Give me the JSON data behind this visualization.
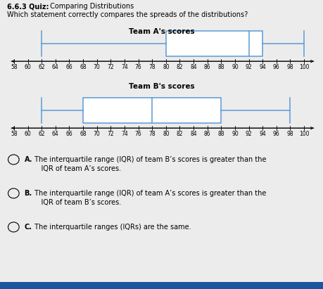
{
  "title_bold": "6.6.3 Quiz:",
  "title_normal": " Comparing Distributions",
  "question": "Which statement correctly compares the spreads of the distributions?",
  "team_a": {
    "label": "Team A's scores",
    "whisker_low": 62,
    "q1": 80,
    "median": 92,
    "q3": 94,
    "whisker_high": 100
  },
  "team_b": {
    "label": "Team B's scores",
    "whisker_low": 62,
    "q1": 68,
    "median": 78,
    "q3": 88,
    "whisker_high": 98
  },
  "axis_min": 57,
  "axis_max": 102,
  "axis_ticks": [
    58,
    60,
    62,
    64,
    66,
    68,
    70,
    72,
    74,
    76,
    78,
    80,
    82,
    84,
    86,
    88,
    90,
    92,
    94,
    96,
    98,
    100
  ],
  "box_color": "#5b9bd5",
  "box_facecolor": "#ffffff",
  "bg_color": "#ececec",
  "choice_A_bold": "A.",
  "choice_A_text": " The interquartile range (IQR) of team B’s scores is greater than the\n    IQR of team A’s scores.",
  "choice_B_bold": "B.",
  "choice_B_text": " The interquartile range (IQR) of team A’s scores is greater than the\n    IQR of team B’s scores.",
  "choice_C_bold": "C.",
  "choice_C_text": " The interquartile ranges (IQRs) are the same.",
  "bottom_bar_color": "#1a56a0"
}
